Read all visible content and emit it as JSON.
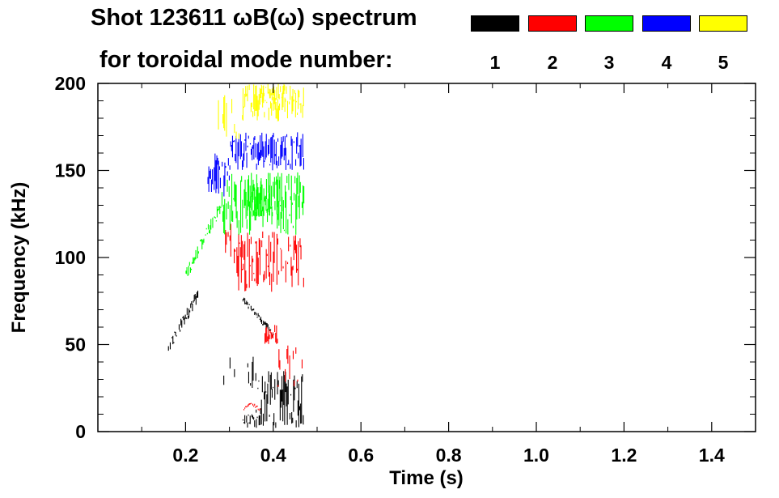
{
  "chart_data": {
    "type": "scatter",
    "title_line1": "Shot 123611 ωB(ω) spectrum",
    "title_line2": "for toroidal mode number:",
    "xlabel": "Time (s)",
    "ylabel": "Frequency (kHz)",
    "xlim": [
      0.0,
      1.5
    ],
    "ylim": [
      0,
      200
    ],
    "x_ticks": [
      0.2,
      0.4,
      0.6,
      0.8,
      1.0,
      1.2,
      1.4
    ],
    "x_tick_labels": [
      "0.2",
      "0.4",
      "0.6",
      "0.8",
      "1.0",
      "1.2",
      "1.4"
    ],
    "y_ticks": [
      0,
      50,
      100,
      150,
      200
    ],
    "y_tick_labels": [
      "0",
      "50",
      "100",
      "150",
      "200"
    ],
    "legend": [
      {
        "label": "1",
        "color": "#000000"
      },
      {
        "label": "2",
        "color": "#ff0000"
      },
      {
        "label": "3",
        "color": "#00ff00"
      },
      {
        "label": "4",
        "color": "#0000ff"
      },
      {
        "label": "5",
        "color": "#ffff00"
      }
    ],
    "series": [
      {
        "name": "1",
        "color": "#000000",
        "regions": [
          {
            "t": [
              0.16,
              0.23
            ],
            "f": [
              48,
              80
            ],
            "shape": "ramp"
          },
          {
            "t": [
              0.33,
              0.4
            ],
            "f": [
              56,
              76
            ],
            "shape": "ramp-down"
          },
          {
            "t": [
              0.33,
              0.37
            ],
            "f": [
              2,
              10
            ],
            "shape": "blob"
          },
          {
            "t": [
              0.36,
              0.47
            ],
            "f": [
              2,
              35
            ],
            "shape": "streaks"
          },
          {
            "t": [
              0.28,
              0.36
            ],
            "f": [
              25,
              45
            ],
            "shape": "sparse"
          }
        ]
      },
      {
        "name": "2",
        "color": "#ff0000",
        "regions": [
          {
            "t": [
              0.31,
              0.47
            ],
            "f": [
              80,
              115
            ],
            "shape": "blob"
          },
          {
            "t": [
              0.29,
              0.33
            ],
            "f": [
              100,
              120
            ],
            "shape": "sparse"
          },
          {
            "t": [
              0.38,
              0.41
            ],
            "f": [
              50,
              62
            ],
            "shape": "blob"
          },
          {
            "t": [
              0.33,
              0.37
            ],
            "f": [
              12,
              16
            ],
            "shape": "arc"
          },
          {
            "t": [
              0.41,
              0.47
            ],
            "f": [
              25,
              50
            ],
            "shape": "sparse"
          }
        ]
      },
      {
        "name": "3",
        "color": "#00ff00",
        "regions": [
          {
            "t": [
              0.2,
              0.28
            ],
            "f": [
              90,
              130
            ],
            "shape": "ramp"
          },
          {
            "t": [
              0.28,
              0.47
            ],
            "f": [
              113,
              150
            ],
            "shape": "blob"
          },
          {
            "t": [
              0.34,
              0.42
            ],
            "f": [
              123,
              145
            ],
            "shape": "blob"
          }
        ]
      },
      {
        "name": "4",
        "color": "#0000ff",
        "regions": [
          {
            "t": [
              0.25,
              0.3
            ],
            "f": [
              135,
              160
            ],
            "shape": "blob"
          },
          {
            "t": [
              0.3,
              0.47
            ],
            "f": [
              150,
              172
            ],
            "shape": "blob"
          }
        ]
      },
      {
        "name": "5",
        "color": "#ffff00",
        "regions": [
          {
            "t": [
              0.27,
              0.33
            ],
            "f": [
              168,
              200
            ],
            "shape": "sparse"
          },
          {
            "t": [
              0.33,
              0.47
            ],
            "f": [
              178,
              200
            ],
            "shape": "blob"
          },
          {
            "t": [
              0.37,
              0.43
            ],
            "f": [
              189,
              200
            ],
            "shape": "blob"
          }
        ]
      }
    ]
  }
}
